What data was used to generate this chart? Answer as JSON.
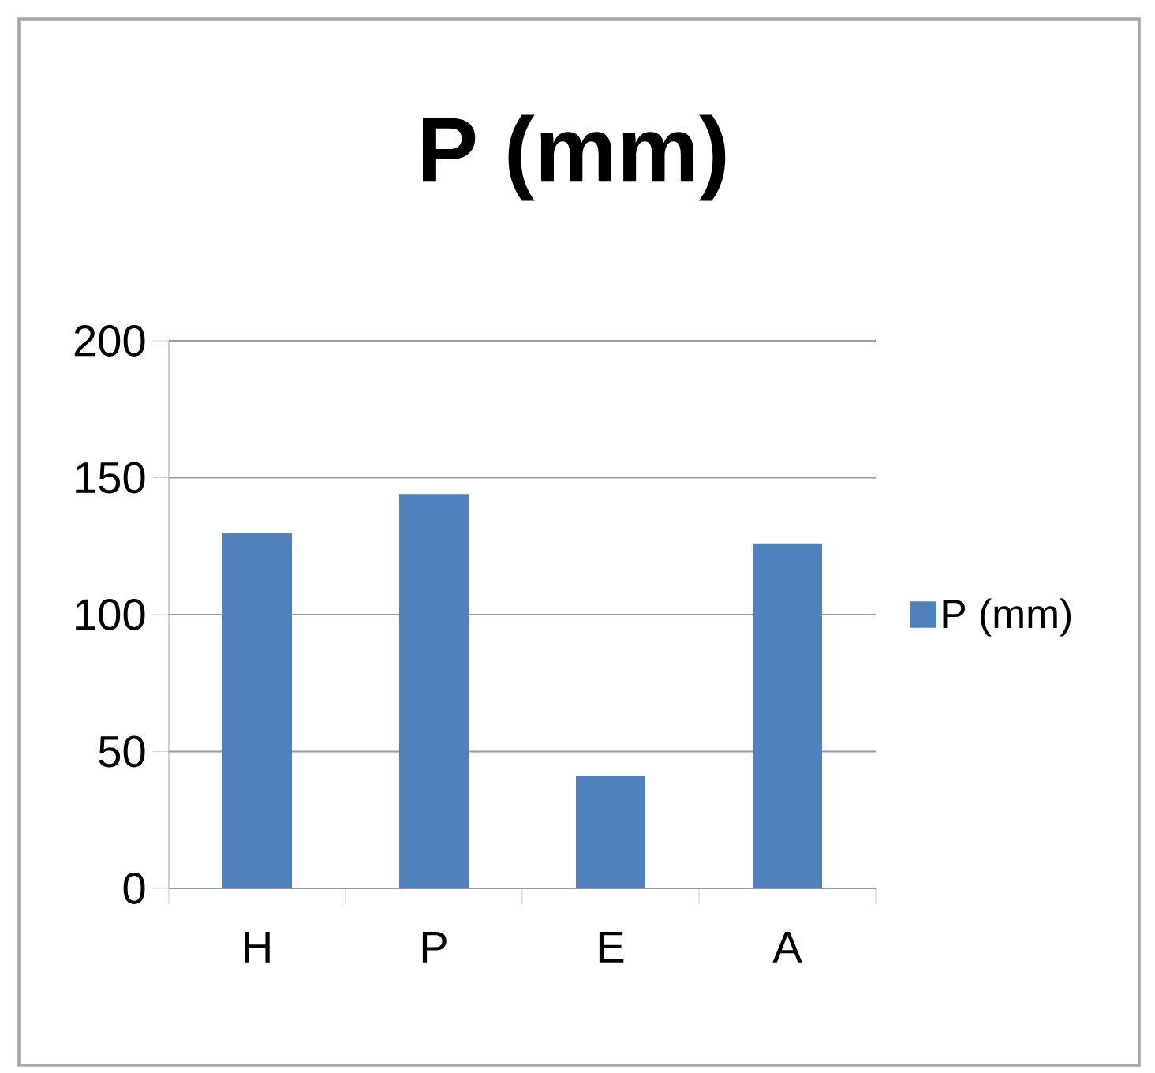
{
  "chart_data": {
    "type": "bar",
    "title": "P (mm)",
    "categories": [
      "H",
      "P",
      "E",
      "A"
    ],
    "series": [
      {
        "name": "P (mm)",
        "color": "#4f81bd",
        "values": [
          130,
          144,
          41,
          126
        ]
      }
    ],
    "ylim": [
      0,
      200
    ],
    "yticks": [
      0,
      50,
      100,
      150,
      200
    ],
    "grid": "y",
    "legend": "right"
  }
}
